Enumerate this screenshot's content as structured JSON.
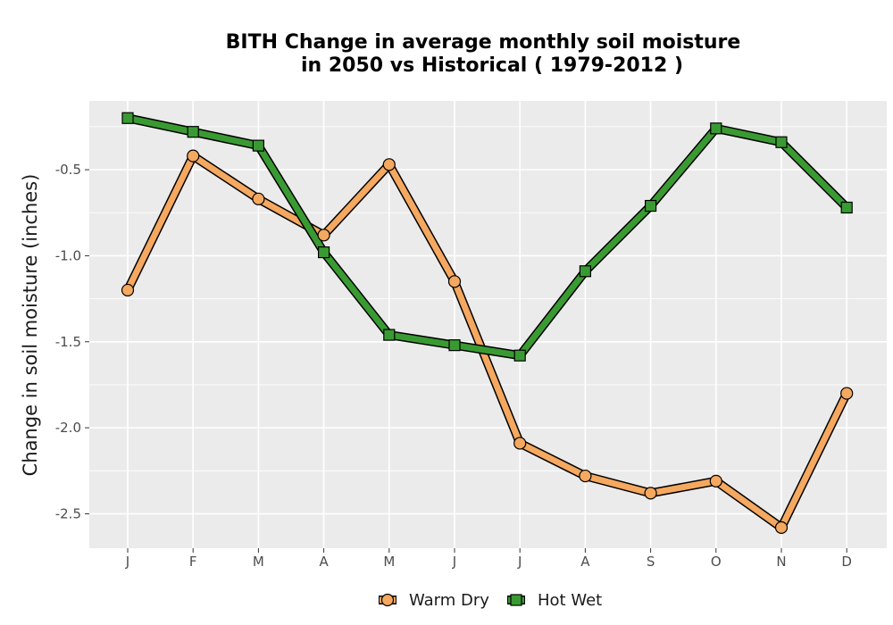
{
  "chart_data": {
    "type": "line",
    "title_lines": [
      "BITH  Change in average monthly soil moisture",
      "in 2050 vs Historical ( 1979-2012 )"
    ],
    "xlabel": "",
    "ylabel": "Change in soil moisture (inches)",
    "categories": [
      "J",
      "F",
      "M",
      "A",
      "M",
      "J",
      "J",
      "A",
      "S",
      "O",
      "N",
      "D"
    ],
    "yticks": [
      -0.5,
      -1.0,
      -1.5,
      -2.0,
      -2.5
    ],
    "ytick_labels": [
      "-0.5",
      "-1.0",
      "-1.5",
      "-2.0",
      "-2.5"
    ],
    "ylim": [
      -2.7,
      -0.1
    ],
    "grid": true,
    "legend_position": "bottom",
    "series": [
      {
        "name": "Warm Dry",
        "marker": "circle",
        "color": "#f5a85f",
        "values": [
          -1.2,
          -0.42,
          -0.67,
          -0.88,
          -0.47,
          -1.15,
          -2.09,
          -2.28,
          -2.38,
          -2.31,
          -2.58,
          -1.8
        ]
      },
      {
        "name": "Hot Wet",
        "marker": "square",
        "color": "#3a9a32",
        "values": [
          -0.2,
          -0.28,
          -0.36,
          -0.98,
          -1.46,
          -1.52,
          -1.58,
          -1.09,
          -0.71,
          -0.26,
          -0.34,
          -0.72
        ]
      }
    ]
  }
}
